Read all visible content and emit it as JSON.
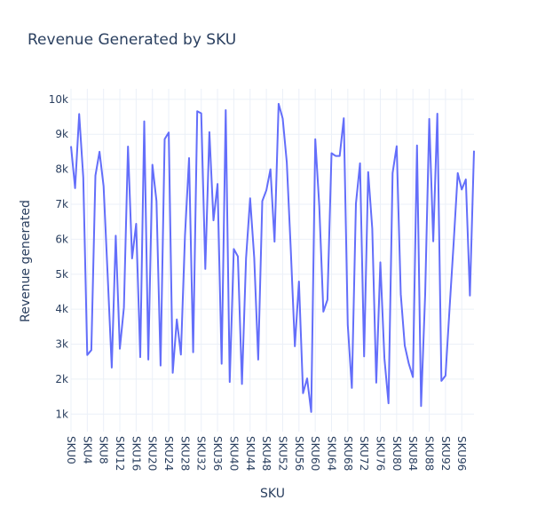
{
  "chart_data": {
    "type": "line",
    "title": "Revenue Generated by SKU",
    "xlabel": "SKU",
    "ylabel": "Revenue generated",
    "line_color": "#636efa",
    "grid": true,
    "ylim": [
      500,
      10300
    ],
    "y_ticks": [
      1000,
      2000,
      3000,
      4000,
      5000,
      6000,
      7000,
      8000,
      9000,
      10000
    ],
    "y_tick_labels": [
      "1k",
      "2k",
      "3k",
      "4k",
      "5k",
      "6k",
      "7k",
      "8k",
      "9k",
      "10k"
    ],
    "x_tick_labels": [
      "SKU0",
      "SKU4",
      "SKU8",
      "SKU12",
      "SKU16",
      "SKU20",
      "SKU24",
      "SKU28",
      "SKU32",
      "SKU36",
      "SKU40",
      "SKU44",
      "SKU48",
      "SKU52",
      "SKU56",
      "SKU60",
      "SKU64",
      "SKU68",
      "SKU72",
      "SKU76",
      "SKU80",
      "SKU84",
      "SKU88",
      "SKU92",
      "SKU96"
    ],
    "categories": [
      "SKU0",
      "SKU1",
      "SKU2",
      "SKU3",
      "SKU4",
      "SKU5",
      "SKU6",
      "SKU7",
      "SKU8",
      "SKU9",
      "SKU10",
      "SKU11",
      "SKU12",
      "SKU13",
      "SKU14",
      "SKU15",
      "SKU16",
      "SKU17",
      "SKU18",
      "SKU19",
      "SKU20",
      "SKU21",
      "SKU22",
      "SKU23",
      "SKU24",
      "SKU25",
      "SKU26",
      "SKU27",
      "SKU28",
      "SKU29",
      "SKU30",
      "SKU31",
      "SKU32",
      "SKU33",
      "SKU34",
      "SKU35",
      "SKU36",
      "SKU37",
      "SKU38",
      "SKU39",
      "SKU40",
      "SKU41",
      "SKU42",
      "SKU43",
      "SKU44",
      "SKU45",
      "SKU46",
      "SKU47",
      "SKU48",
      "SKU49",
      "SKU50",
      "SKU51",
      "SKU52",
      "SKU53",
      "SKU54",
      "SKU55",
      "SKU56",
      "SKU57",
      "SKU58",
      "SKU59",
      "SKU60",
      "SKU61",
      "SKU62",
      "SKU63",
      "SKU64",
      "SKU65",
      "SKU66",
      "SKU67",
      "SKU68",
      "SKU69",
      "SKU70",
      "SKU71",
      "SKU72",
      "SKU73",
      "SKU74",
      "SKU75",
      "SKU76",
      "SKU77",
      "SKU78",
      "SKU79",
      "SKU80",
      "SKU81",
      "SKU82",
      "SKU83",
      "SKU84",
      "SKU85",
      "SKU86",
      "SKU87",
      "SKU88",
      "SKU89",
      "SKU90",
      "SKU91",
      "SKU92",
      "SKU93",
      "SKU94",
      "SKU95",
      "SKU96",
      "SKU97",
      "SKU98",
      "SKU99"
    ],
    "values": [
      8660,
      7460,
      9580,
      7770,
      2690,
      2830,
      7820,
      8500,
      7520,
      4970,
      2330,
      6100,
      2870,
      4050,
      8650,
      5450,
      6440,
      2630,
      9370,
      2560,
      8130,
      7090,
      2390,
      8860,
      9050,
      2180,
      3710,
      2700,
      6100,
      8320,
      2770,
      9660,
      9600,
      5150,
      9060,
      6540,
      7580,
      2440,
      9690,
      1920,
      5720,
      5510,
      1860,
      5450,
      7170,
      5470,
      2560,
      7090,
      7400,
      8000,
      5930,
      9870,
      9450,
      8200,
      5700,
      2940,
      4790,
      1600,
      2020,
      1060,
      8860,
      6950,
      3930,
      4270,
      8460,
      8380,
      8380,
      9460,
      3550,
      1750,
      7020,
      8170,
      2650,
      7920,
      6300,
      1900,
      5340,
      2590,
      1310,
      7890,
      8660,
      4430,
      2960,
      2440,
      2060,
      8680,
      1230,
      4430,
      9440,
      5940,
      9590,
      1950,
      2100,
      4030,
      5900,
      7890,
      7420,
      7710,
      4390,
      8530
    ]
  }
}
